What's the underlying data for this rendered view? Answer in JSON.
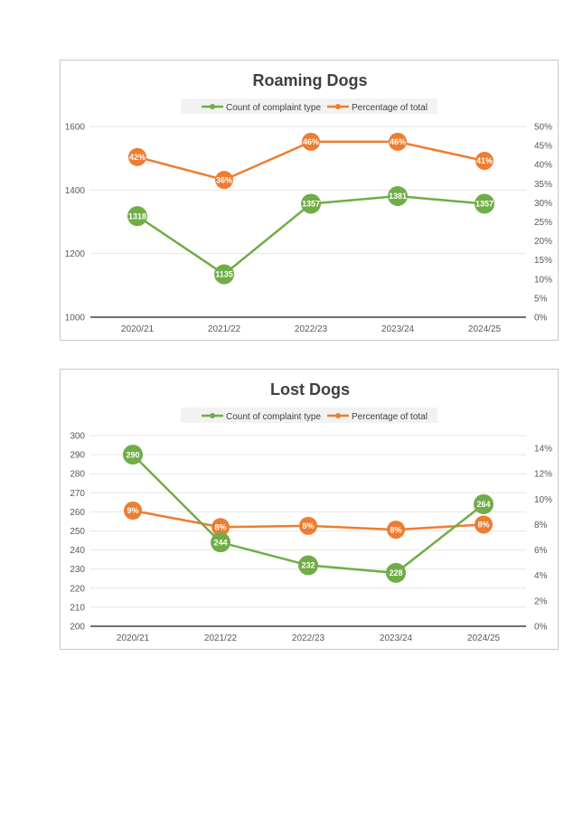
{
  "colors": {
    "count": "#70AD47",
    "percent": "#ED7D31",
    "grid": "#e6e6e6",
    "axis": "#404040"
  },
  "chart_data": [
    {
      "type": "line",
      "title": "Roaming Dogs",
      "categories": [
        "2020/21",
        "2021/22",
        "2022/23",
        "2023/24",
        "2024/25"
      ],
      "series": [
        {
          "name": "Count of complaint type",
          "axis": "left",
          "values": [
            1318,
            1135,
            1357,
            1381,
            1357
          ],
          "labels": [
            "1318",
            "1135",
            "1357",
            "1381",
            "1357"
          ]
        },
        {
          "name": "Percentage of total",
          "axis": "right",
          "values": [
            42,
            36,
            46,
            46,
            41
          ],
          "labels": [
            "42%",
            "36%",
            "46%",
            "46%",
            "41%"
          ]
        }
      ],
      "ylim": [
        1000,
        1600
      ],
      "y_ticks": [
        "1000",
        "1200",
        "1400",
        "1600"
      ],
      "y_tick_values": [
        1000,
        1200,
        1400,
        1600
      ],
      "y2lim": [
        0,
        50
      ],
      "y2_ticks": [
        "0%",
        "5%",
        "10%",
        "15%",
        "20%",
        "25%",
        "30%",
        "35%",
        "40%",
        "45%",
        "50%"
      ],
      "y2_tick_values": [
        0,
        5,
        10,
        15,
        20,
        25,
        30,
        35,
        40,
        45,
        50
      ],
      "legend": "top-center",
      "grid": true
    },
    {
      "type": "line",
      "title": "Lost Dogs",
      "categories": [
        "2020/21",
        "2021/22",
        "2022/23",
        "2023/24",
        "2024/25"
      ],
      "series": [
        {
          "name": "Count of complaint type",
          "axis": "left",
          "values": [
            290,
            244,
            232,
            228,
            264
          ],
          "labels": [
            "290",
            "244",
            "232",
            "228",
            "264"
          ]
        },
        {
          "name": "Percentage of total",
          "axis": "right",
          "values": [
            9.1,
            7.8,
            7.9,
            7.6,
            8.0
          ],
          "labels": [
            "9%",
            "8%",
            "8%",
            "8%",
            "8%"
          ]
        }
      ],
      "ylim": [
        200,
        300
      ],
      "y_ticks": [
        "200",
        "210",
        "220",
        "230",
        "240",
        "250",
        "260",
        "270",
        "280",
        "290",
        "300"
      ],
      "y_tick_values": [
        200,
        210,
        220,
        230,
        240,
        250,
        260,
        270,
        280,
        290,
        300
      ],
      "y2lim": [
        0,
        15
      ],
      "y2_ticks": [
        "0%",
        "2%",
        "4%",
        "6%",
        "8%",
        "10%",
        "12%",
        "14%"
      ],
      "y2_tick_values": [
        0,
        2,
        4,
        6,
        8,
        10,
        12,
        14
      ],
      "legend": "top-center",
      "grid": true
    }
  ]
}
